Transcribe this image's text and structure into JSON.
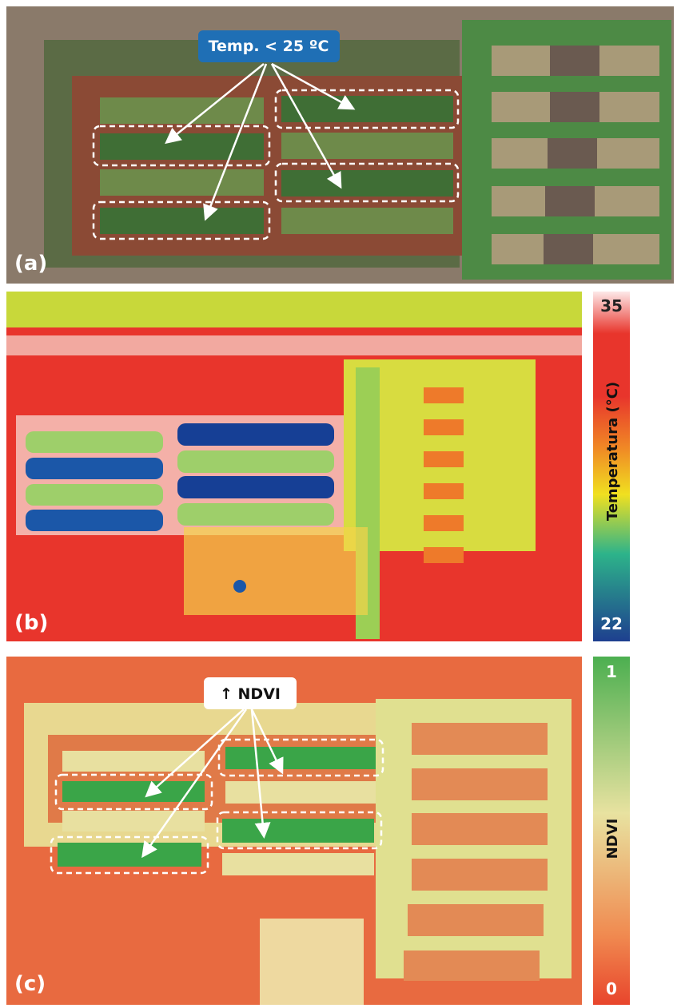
{
  "panels": {
    "a": {
      "label": "(a)",
      "callout": "Temp. < 25 ºC"
    },
    "b": {
      "label": "(b)",
      "colorbar": {
        "title": "Temperatura (°C)",
        "max": 35,
        "min": 22
      }
    },
    "c": {
      "label": "(c)",
      "callout": "↑ NDVI",
      "colorbar": {
        "title": "NDVI",
        "max": 1,
        "min": 0
      }
    }
  }
}
